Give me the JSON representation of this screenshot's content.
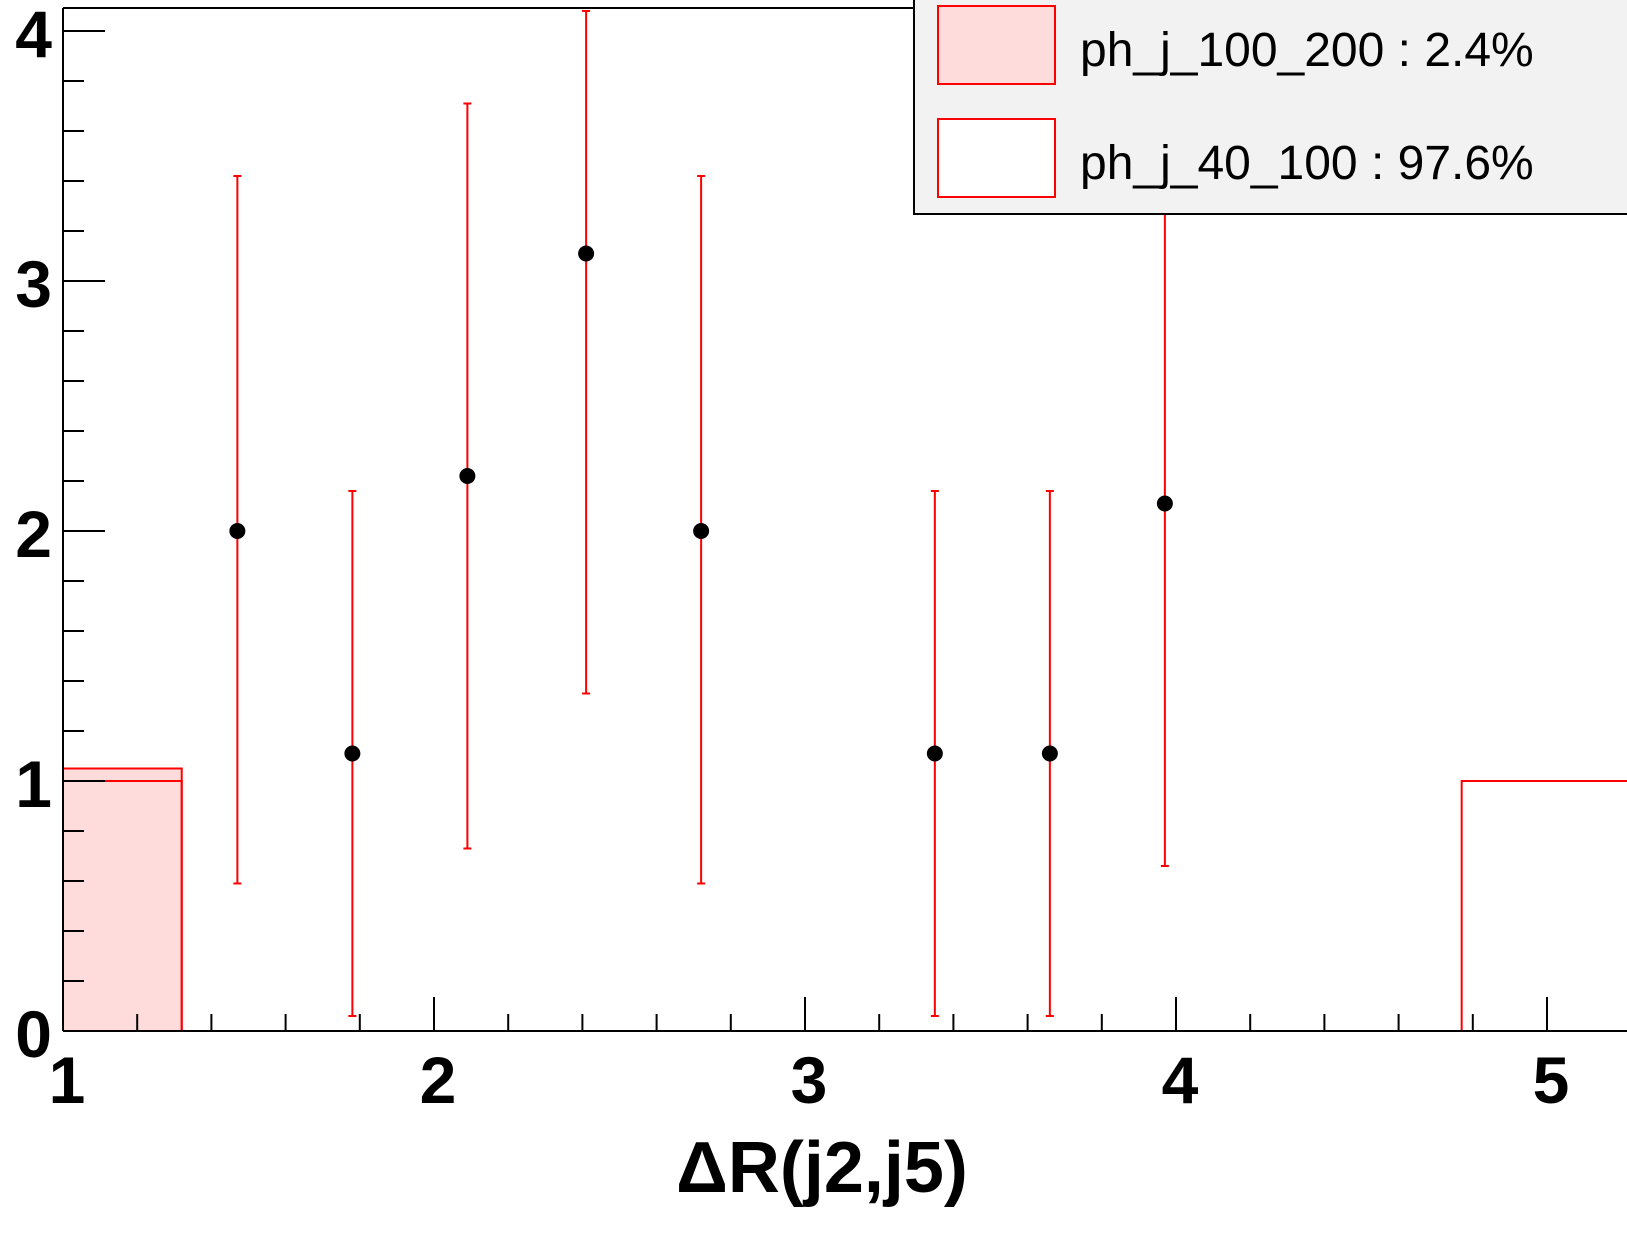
{
  "chart_data": {
    "type": "histogram",
    "xlabel": "ΔR(j2,j5)",
    "ylabel": "",
    "xlim": [
      1,
      5.05
    ],
    "ylim": [
      0,
      4.1
    ],
    "x_ticks": [
      1,
      2,
      3,
      4,
      5
    ],
    "y_ticks": [
      0,
      1,
      2,
      3,
      4
    ],
    "grid": false,
    "legend_position": "top-right",
    "colors": {
      "stack": "#ff0000",
      "stack_fill": "#ffdcdc",
      "errorbar": "#ff0000",
      "points": "#000000",
      "axis": "#000000",
      "legend_bg": "#f2f2f2"
    },
    "series": [
      {
        "name": "ph_j_100_200 : 2.4%",
        "style": "filled",
        "bins": [
          {
            "x_low": 0.85,
            "x_high": 1.32,
            "value": 1.05
          }
        ]
      },
      {
        "name": "ph_j_40_100 : 97.6%",
        "style": "hollow",
        "bins": [
          {
            "x_low": 0.85,
            "x_high": 1.32,
            "value": 1.0
          },
          {
            "x_low": 1.32,
            "x_high": 4.77,
            "value": 0.0
          },
          {
            "x_low": 4.77,
            "x_high": 5.24,
            "value": 1.0
          }
        ]
      }
    ],
    "data_points": [
      {
        "x": 1.47,
        "y": 2.0,
        "err_low": 0.59,
        "err_high": 3.42
      },
      {
        "x": 1.78,
        "y": 1.11,
        "err_low": 0.06,
        "err_high": 2.16
      },
      {
        "x": 2.09,
        "y": 2.22,
        "err_low": 0.73,
        "err_high": 3.71
      },
      {
        "x": 2.41,
        "y": 3.11,
        "err_low": 1.35,
        "err_high": 4.08
      },
      {
        "x": 2.72,
        "y": 2.0,
        "err_low": 0.59,
        "err_high": 3.42
      },
      {
        "x": 3.35,
        "y": 1.11,
        "err_low": 0.06,
        "err_high": 2.16
      },
      {
        "x": 3.66,
        "y": 1.11,
        "err_low": 0.06,
        "err_high": 2.16
      },
      {
        "x": 3.97,
        "y": 2.11,
        "err_low": 0.66,
        "err_high": 3.56
      }
    ]
  }
}
